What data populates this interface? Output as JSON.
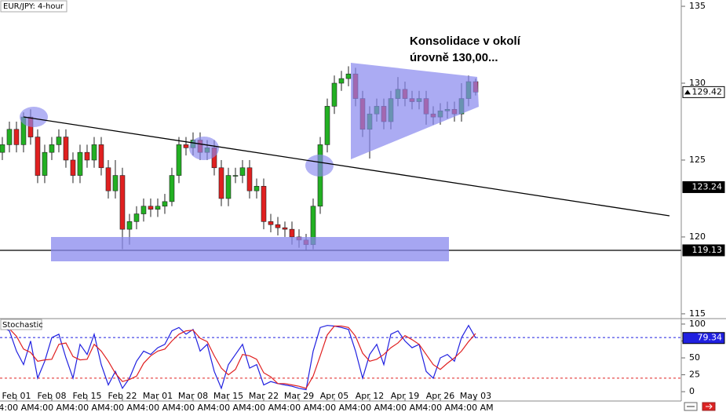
{
  "chart_data": [
    {
      "type": "candlestick",
      "title": "EUR/JPY: 4-hour",
      "open": [
        125.5,
        126,
        127,
        126,
        127.8,
        126.5,
        124,
        125.5,
        126,
        126.5,
        125,
        124,
        125.5,
        125,
        126,
        124.5,
        123,
        124,
        120.5,
        121,
        121.5,
        122,
        121.8,
        122,
        122.3,
        124,
        126,
        125.8,
        126.3,
        125.5,
        125.8,
        124.5,
        122.5,
        124,
        124,
        124.5,
        123,
        123.3,
        121,
        120.8,
        120.6,
        120.5,
        120,
        119.8,
        119.5,
        122,
        126,
        128.5,
        130,
        130.3,
        130.6,
        129,
        127,
        128,
        128.5,
        127.5,
        129,
        129.6,
        129,
        128.8,
        129,
        128,
        127.8,
        128.2,
        128.3,
        128,
        129,
        130.1
      ],
      "high": [
        126.5,
        127.5,
        127.5,
        128.1,
        128.3,
        127,
        126,
        126.5,
        127,
        127,
        125.5,
        126,
        126,
        126.5,
        126.5,
        125,
        125,
        124.5,
        121.5,
        122,
        122.5,
        122.5,
        122.5,
        122.8,
        124.5,
        126.5,
        126.5,
        126.8,
        126.8,
        126.3,
        126.3,
        125,
        124.5,
        124.5,
        125,
        125,
        123.8,
        123.8,
        121.5,
        121.3,
        121,
        121,
        120.5,
        120.2,
        122.5,
        126.5,
        129,
        130.5,
        130.8,
        131.1,
        131,
        129.5,
        128.5,
        129,
        129,
        129.5,
        130.4,
        130.1,
        129.5,
        129.5,
        129.5,
        128.5,
        128.7,
        128.8,
        128.8,
        130,
        130.5,
        130.3
      ],
      "low": [
        125,
        125.5,
        125.5,
        125.5,
        126,
        123.5,
        123.5,
        125,
        125.5,
        124.5,
        123.5,
        123.5,
        124.5,
        124.5,
        124,
        122.5,
        122.5,
        119.2,
        119.5,
        120.5,
        121,
        121.3,
        121.3,
        121.5,
        122,
        123.5,
        125.3,
        125.3,
        125,
        125,
        124,
        122,
        122,
        123.5,
        123.5,
        122.5,
        122.5,
        120.5,
        120.3,
        120.1,
        120,
        119.5,
        119.3,
        119.13,
        119.2,
        121.5,
        125.5,
        128,
        129.5,
        129.8,
        128.5,
        126.5,
        125.1,
        127.5,
        127,
        127,
        128.5,
        128.5,
        128.3,
        128.3,
        127.3,
        127.3,
        127.3,
        127.7,
        127.5,
        127.5,
        128.5,
        129.2
      ],
      "close": [
        126,
        127,
        126,
        127.8,
        126.5,
        124,
        125.5,
        126,
        126.5,
        125,
        124,
        125.5,
        125,
        126,
        124.5,
        123,
        124,
        120.5,
        121,
        121.5,
        122,
        121.8,
        122,
        122.3,
        124,
        126,
        125.8,
        126.3,
        125.5,
        125.8,
        124.5,
        122.5,
        124,
        124,
        124.5,
        123,
        123.3,
        121,
        120.8,
        120.6,
        120.5,
        120,
        119.8,
        119.5,
        122,
        126,
        128.5,
        130,
        130.3,
        130.6,
        129,
        127,
        128,
        128.5,
        127.5,
        129,
        129.6,
        129,
        128.8,
        129,
        128,
        127.8,
        128.2,
        128.3,
        128,
        129,
        130.1,
        129.42
      ],
      "up_color": "#22b022",
      "down_color": "#e02020",
      "xlim": [
        -0.33,
        96.11
      ],
      "ylim": [
        114.74,
        135.41
      ],
      "yticks": [
        115,
        120,
        125,
        130,
        135
      ],
      "last_price": 129.42,
      "trendline_level": 123.24,
      "support_level": 119.13,
      "annotation": [
        "Konsolidace v okolí",
        "úrovně 130,00..."
      ]
    },
    {
      "type": "line",
      "title": "Stochastic",
      "series": [
        {
          "color": "#2020e0",
          "values": [
            95,
            90,
            60,
            40,
            75,
            20,
            45,
            80,
            85,
            50,
            20,
            70,
            55,
            85,
            40,
            10,
            30,
            5,
            20,
            45,
            60,
            55,
            65,
            70,
            90,
            95,
            85,
            92,
            60,
            70,
            30,
            5,
            40,
            55,
            70,
            35,
            40,
            10,
            15,
            12,
            10,
            8,
            5,
            3,
            60,
            95,
            98,
            97,
            95,
            92,
            60,
            20,
            55,
            70,
            40,
            85,
            90,
            75,
            65,
            70,
            30,
            20,
            50,
            55,
            45,
            80,
            98,
            79.34
          ]
        },
        {
          "color": "#e02020",
          "values": [
            92,
            93,
            82,
            63,
            58,
            45,
            47,
            48,
            70,
            72,
            52,
            47,
            48,
            70,
            60,
            45,
            27,
            15,
            18,
            23,
            42,
            53,
            60,
            63,
            75,
            85,
            90,
            91,
            79,
            74,
            53,
            35,
            25,
            33,
            55,
            53,
            48,
            28,
            22,
            12,
            12,
            10,
            8,
            5,
            23,
            53,
            84,
            97,
            97,
            95,
            82,
            57,
            45,
            48,
            55,
            65,
            72,
            83,
            77,
            70,
            55,
            40,
            33,
            42,
            50,
            60,
            74,
            86
          ]
        }
      ],
      "levels": [
        80,
        20
      ],
      "xlim": [
        -0.33,
        96.11
      ],
      "ylim": [
        -13.8,
        106.9
      ],
      "yticks": [
        0,
        25,
        50,
        75,
        100
      ],
      "xticks": [
        {
          "value": 2,
          "label": "Feb 01"
        },
        {
          "value": 7,
          "label": "Feb 08"
        },
        {
          "value": 12,
          "label": "Feb 15"
        },
        {
          "value": 17,
          "label": "Feb 22"
        },
        {
          "value": 22,
          "label": "Mar 01"
        },
        {
          "value": 27,
          "label": "Mar 08"
        },
        {
          "value": 32,
          "label": "Mar 15"
        },
        {
          "value": 37,
          "label": "Mar 22"
        },
        {
          "value": 42,
          "label": "Mar 29"
        },
        {
          "value": 47,
          "label": "Apr 05"
        },
        {
          "value": 52,
          "label": "Apr 12"
        },
        {
          "value": 57,
          "label": "Apr 19"
        },
        {
          "value": 62,
          "label": "Apr 26"
        },
        {
          "value": 67,
          "label": "May 03"
        }
      ],
      "xtick_times": [
        "4:00 AM",
        "4:00 AM",
        "4:00 AM",
        "4:00 AM",
        "4:00 AM",
        "4:00 AM",
        "4:00 AM",
        "4:00 AM",
        "4:00 AM",
        "4:00 AM",
        "4:00 AM",
        "4:00 AM",
        "4:00 AM",
        "4:00 AM"
      ]
    }
  ]
}
